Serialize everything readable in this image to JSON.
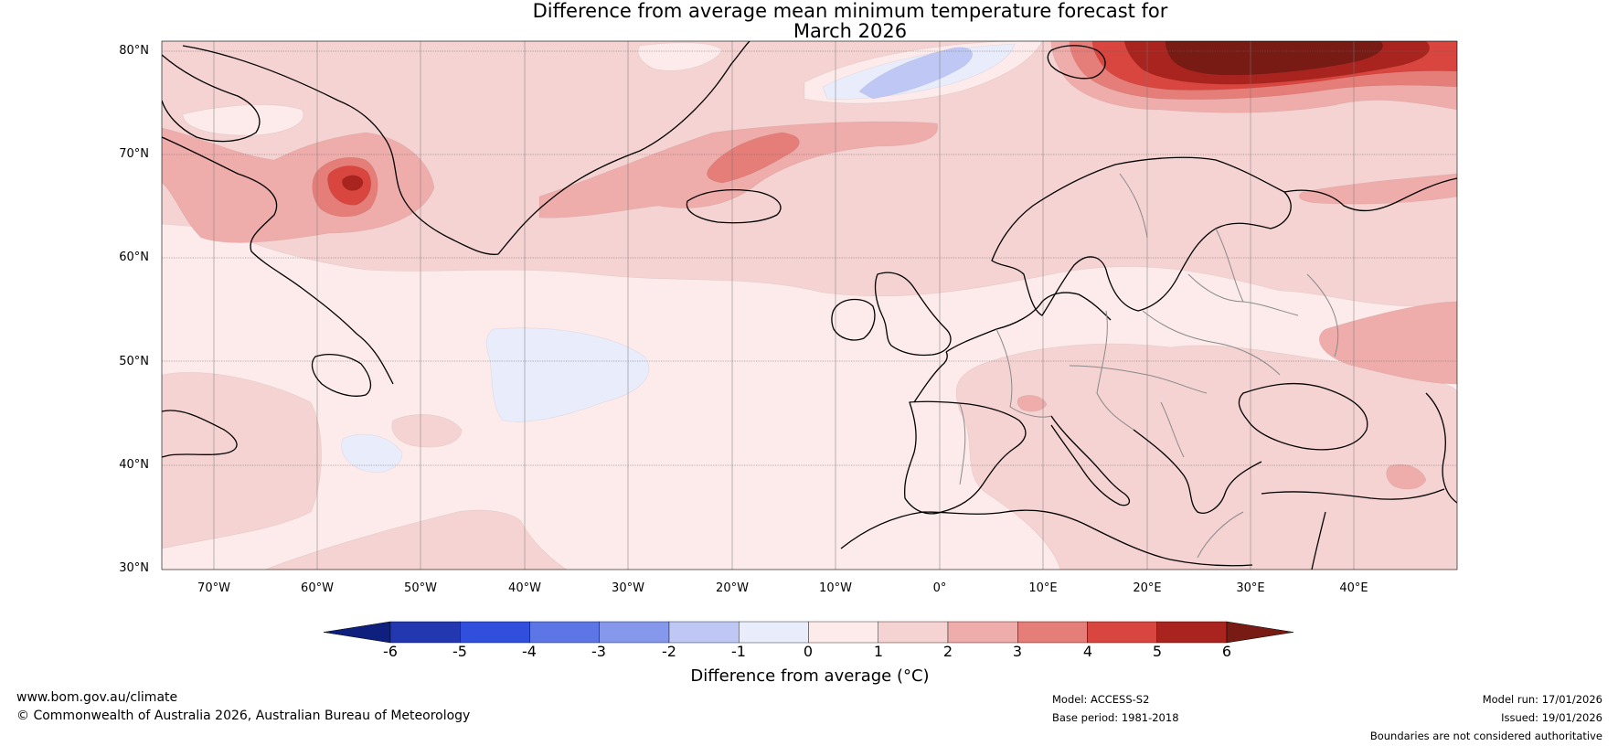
{
  "title": {
    "line1": "Difference from average mean minimum temperature forecast for",
    "line2": "March 2026"
  },
  "latitude_labels": [
    "80°N",
    "70°N",
    "60°N",
    "50°N",
    "40°N",
    "30°N"
  ],
  "longitude_labels": [
    "70°W",
    "60°W",
    "50°W",
    "40°W",
    "30°W",
    "20°W",
    "10°W",
    "0°",
    "10°E",
    "20°E",
    "30°E",
    "40°E"
  ],
  "colorbar": {
    "ticks": [
      "-6",
      "-5",
      "-4",
      "-3",
      "-2",
      "-1",
      "0",
      "1",
      "2",
      "3",
      "4",
      "5",
      "6"
    ],
    "colors": [
      "#0e1f7e",
      "#2338b0",
      "#2f4fdc",
      "#5c76e6",
      "#8598ec",
      "#bfc8f4",
      "#e9ecfb",
      "#fcebea",
      "#f5d3d2",
      "#eeadab",
      "#e57d78",
      "#d8463f",
      "#a9241f",
      "#781b15"
    ],
    "label": "Difference from average (°C)"
  },
  "map_colors": {
    "background": "#fcebea",
    "band_1_2": "#f5d3d2",
    "band_2_3": "#eeadab",
    "band_3_4": "#e57d78",
    "band_4_5": "#d8463f",
    "band_5_6": "#a9241f",
    "band_above_6": "#781b15",
    "band_neg_0": "#e9ecfb",
    "band_neg_1": "#bfc8f4"
  },
  "footer": {
    "website": "www.bom.gov.au/climate",
    "copyright": "© Commonwealth of Australia 2026, Australian Bureau of Meteorology",
    "model": "Model: ACCESS-S2",
    "base_period": "Base period: 1981-2018",
    "model_run": "Model run: 17/01/2026",
    "issued": "Issued: 19/01/2026",
    "disclaimer": "Boundaries are not considered authoritative"
  }
}
